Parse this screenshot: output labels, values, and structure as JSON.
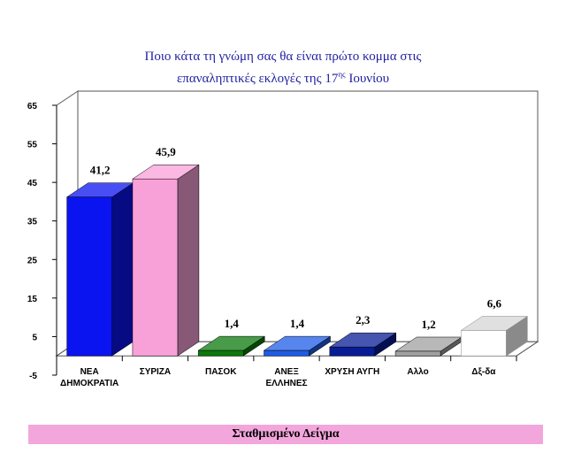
{
  "title_line1": "Ποιο κάτα τη γνώμη σας θα είναι πρώτο κομμα στις",
  "title_line2_pre": "επαναληπτικές εκλογές της 17",
  "title_line2_sup": "ης",
  "title_line2_post": " Ιουνίου",
  "footer": "Σταθμισμένο Δείγμα",
  "chart_data": {
    "type": "bar",
    "categories": [
      "ΝΕΑ ΔΗΜΟΚΡΑΤΙΑ",
      "ΣΥΡΙΖΑ",
      "ΠΑΣΟΚ",
      "ΑΝΕΞ ΕΛΛΗΝΕΣ",
      "ΧΡΥΣΗ ΑΥΓΗ",
      "Αλλο",
      "Δξ-δα"
    ],
    "category_lines": [
      [
        "ΝΕΑ",
        "ΔΗΜΟΚΡΑΤΙΑ"
      ],
      [
        "ΣΥΡΙΖΑ"
      ],
      [
        "ΠΑΣΟΚ"
      ],
      [
        "ΑΝΕΞ",
        "ΕΛΛΗΝΕΣ"
      ],
      [
        "ΧΡΥΣΗ ΑΥΓΗ"
      ],
      [
        "Αλλο"
      ],
      [
        "Δξ-δα"
      ]
    ],
    "values": [
      41.2,
      45.9,
      1.4,
      1.4,
      2.3,
      1.2,
      6.6
    ],
    "value_labels": [
      "41,2",
      "45,9",
      "1,4",
      "1,4",
      "2,3",
      "1,2",
      "6,6"
    ],
    "colors": [
      "#0a14f0",
      "#f8a0d8",
      "#0b7a0b",
      "#1e5ce8",
      "#081c96",
      "#a0a0a0",
      "#ffffff"
    ],
    "ylim": [
      -5,
      65
    ],
    "yticks": [
      "-5",
      "5",
      "15",
      "25",
      "35",
      "45",
      "55",
      "65"
    ],
    "ytick_values": [
      -5,
      5,
      15,
      25,
      35,
      45,
      55,
      65
    ],
    "three_d": true,
    "grid": false
  }
}
